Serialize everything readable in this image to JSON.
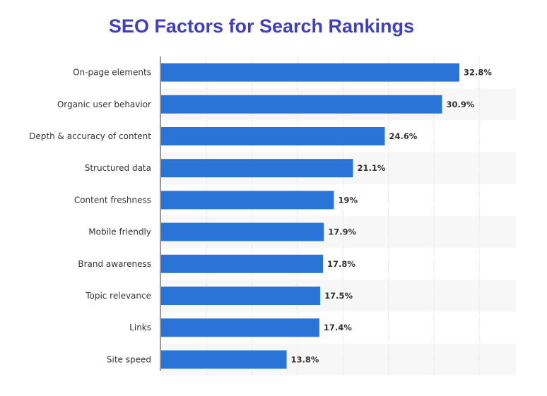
{
  "chart_data": {
    "type": "bar",
    "orientation": "horizontal",
    "title": "SEO Factors for Search Rankings",
    "xlabel": "",
    "ylabel": "",
    "categories": [
      "On-page elements",
      "Organic user behavior",
      "Depth & accuracy of content",
      "Structured data",
      "Content freshness",
      "Mobile friendly",
      "Brand awareness",
      "Topic relevance",
      "Links",
      "Site speed"
    ],
    "values": [
      32.8,
      30.9,
      24.6,
      21.1,
      19,
      17.9,
      17.8,
      17.5,
      17.4,
      13.8
    ],
    "value_labels": [
      "32.8%",
      "30.9%",
      "24.6%",
      "21.1%",
      "19%",
      "17.9%",
      "17.8%",
      "17.5%",
      "17.4%",
      "13.8%"
    ],
    "xlim": [
      0,
      40
    ],
    "grid": true,
    "legend": "none",
    "bar_color": "#2a74d8",
    "title_color": "#3f3fbf"
  }
}
